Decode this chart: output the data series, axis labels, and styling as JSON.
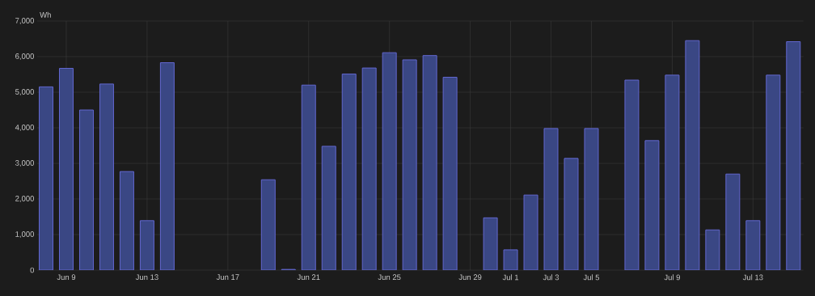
{
  "chart_data": {
    "type": "bar",
    "ylabel": "Wh",
    "categories": [
      null,
      "Jun 9",
      null,
      null,
      null,
      "Jun 13",
      null,
      null,
      null,
      "Jun 17",
      null,
      null,
      null,
      "Jun 21",
      null,
      null,
      null,
      "Jun 25",
      null,
      null,
      null,
      "Jun 29",
      null,
      "Jul 1",
      null,
      "Jul 3",
      null,
      "Jul 5",
      null,
      null,
      null,
      "Jul 9",
      null,
      null,
      null,
      "Jul 13",
      null,
      null
    ],
    "values": [
      5150,
      5670,
      4500,
      5230,
      2770,
      1390,
      5830,
      null,
      null,
      null,
      null,
      2540,
      20,
      5200,
      3480,
      5510,
      5680,
      6110,
      5910,
      6030,
      5420,
      null,
      1470,
      570,
      2110,
      3980,
      3140,
      3980,
      null,
      5340,
      3640,
      5480,
      6450,
      1130,
      2700,
      1390,
      5480,
      6420
    ],
    "color": "#3a4784",
    "ylim": [
      0,
      7000
    ],
    "yticks": [
      0,
      {
        "value": 1000,
        "label": "1,000"
      },
      {
        "value": 2000,
        "label": "2,000"
      },
      {
        "value": 3000,
        "label": "3,000"
      },
      {
        "value": 4000,
        "label": "4,000"
      },
      {
        "value": 5000,
        "label": "5,000"
      },
      {
        "value": 6000,
        "label": "6,000"
      },
      {
        "value": 7000,
        "label": "7,000"
      }
    ],
    "grid": true
  }
}
